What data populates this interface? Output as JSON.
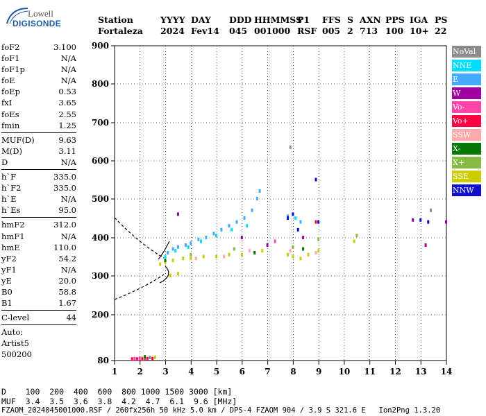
{
  "logo": {
    "top": "Lowell",
    "main": "DIGISONDE"
  },
  "header": {
    "labels": [
      "Station",
      "YYYY",
      "DAY",
      "DDD",
      "HHMMSS",
      "P1",
      "FFS",
      "S",
      "AXN",
      "PPS",
      "IGA",
      "PS"
    ],
    "values": [
      "Fortaleza",
      "2024",
      "Fev14",
      "045",
      "001000",
      "RSF",
      "005",
      "2",
      "713",
      "100",
      "10+",
      "22"
    ]
  },
  "params": {
    "group1": [
      {
        "k": "foF2",
        "v": "3.100"
      },
      {
        "k": "foF1",
        "v": "N/A"
      },
      {
        "k": "foF1p",
        "v": "N/A"
      },
      {
        "k": "foE",
        "v": "N/A"
      },
      {
        "k": "foEp",
        "v": "0.53"
      },
      {
        "k": "fxI",
        "v": "3.65"
      },
      {
        "k": "foEs",
        "v": "2.55"
      },
      {
        "k": "fmin",
        "v": "1.25"
      }
    ],
    "group2": [
      {
        "k": "MUF(D)",
        "v": "9.63"
      },
      {
        "k": "M(D)",
        "v": "3.11"
      },
      {
        "k": "D",
        "v": "N/A"
      }
    ],
    "group3": [
      {
        "k": "h`F",
        "v": "335.0"
      },
      {
        "k": "h`F2",
        "v": "335.0"
      },
      {
        "k": "h`E",
        "v": "N/A"
      },
      {
        "k": "h`Es",
        "v": "95.0"
      }
    ],
    "group4": [
      {
        "k": "hmF2",
        "v": "312.0"
      },
      {
        "k": "hmF1",
        "v": "N/A"
      },
      {
        "k": "hmE",
        "v": "110.0"
      },
      {
        "k": "yF2",
        "v": "54.2"
      },
      {
        "k": "yF1",
        "v": "N/A"
      },
      {
        "k": "yE",
        "v": "20.0"
      },
      {
        "k": "B0",
        "v": "58.8"
      },
      {
        "k": "B1",
        "v": "1.67"
      }
    ],
    "group5": [
      {
        "k": "C-level",
        "v": "44"
      }
    ],
    "auto_label": "Auto:",
    "auto_name": "Artist5",
    "auto_ver": "500200"
  },
  "legend": [
    {
      "label": "NoVal",
      "color": "#8c8c8c"
    },
    {
      "label": "NNE",
      "color": "#00ddff"
    },
    {
      "label": "E",
      "color": "#44aaff"
    },
    {
      "label": "W",
      "color": "#a000a0"
    },
    {
      "label": "Vo-",
      "color": "#ff44aa"
    },
    {
      "label": "Vo+",
      "color": "#ff0044"
    },
    {
      "label": "SSW",
      "color": "#ffaaaa"
    },
    {
      "label": "X-",
      "color": "#007700"
    },
    {
      "label": "X+",
      "color": "#88bb44"
    },
    {
      "label": "SSE",
      "color": "#cccc00"
    },
    {
      "label": "NNW",
      "color": "#1010cc"
    }
  ],
  "chart_data": {
    "type": "scatter",
    "x_ticks": [
      1,
      2,
      3,
      4,
      5,
      6,
      7,
      8,
      9,
      10,
      11,
      12,
      13,
      14
    ],
    "y_ticks": [
      80,
      200,
      300,
      400,
      500,
      600,
      700,
      800,
      900
    ],
    "xlim": [
      1,
      14
    ],
    "ylim_note": "nonlinear height axis (80 at bottom, 900 at top)",
    "series": [
      {
        "name": "E",
        "color": "#44aaff",
        "points": [
          [
            3.1,
            360
          ],
          [
            3.3,
            370
          ],
          [
            3.5,
            375
          ],
          [
            3.8,
            380
          ],
          [
            4.0,
            385
          ],
          [
            4.3,
            395
          ],
          [
            4.6,
            400
          ],
          [
            4.9,
            410
          ],
          [
            5.2,
            420
          ],
          [
            5.5,
            430
          ],
          [
            5.8,
            440
          ],
          [
            6.1,
            450
          ],
          [
            6.4,
            470
          ],
          [
            6.6,
            500
          ],
          [
            6.7,
            520
          ],
          [
            7.8,
            455
          ],
          [
            8.0,
            460
          ],
          [
            8.3,
            440
          ]
        ]
      },
      {
        "name": "NNE",
        "color": "#00ddff",
        "points": [
          [
            3.0,
            350
          ],
          [
            3.4,
            365
          ],
          [
            3.9,
            375
          ],
          [
            4.4,
            390
          ],
          [
            5.0,
            405
          ],
          [
            5.6,
            420
          ],
          [
            6.2,
            430
          ],
          [
            8.1,
            450
          ]
        ]
      },
      {
        "name": "SSE",
        "color": "#cccc00",
        "points": [
          [
            2.8,
            330
          ],
          [
            3.0,
            335
          ],
          [
            3.3,
            340
          ],
          [
            3.7,
            345
          ],
          [
            4.0,
            345
          ],
          [
            4.5,
            350
          ],
          [
            5.0,
            350
          ],
          [
            5.5,
            355
          ],
          [
            6.0,
            355
          ],
          [
            6.5,
            360
          ],
          [
            6.8,
            365
          ],
          [
            7.8,
            355
          ],
          [
            8.0,
            350
          ],
          [
            8.3,
            345
          ],
          [
            8.6,
            355
          ],
          [
            9.0,
            365
          ],
          [
            3.2,
            300
          ],
          [
            3.5,
            305
          ],
          [
            10.4,
            390
          ],
          [
            2.1,
            85
          ],
          [
            2.6,
            88
          ]
        ]
      },
      {
        "name": "SSW",
        "color": "#ffaaaa",
        "points": [
          [
            4.2,
            345
          ],
          [
            5.3,
            350
          ],
          [
            6.3,
            365
          ],
          [
            7.9,
            365
          ],
          [
            8.9,
            360
          ]
        ]
      },
      {
        "name": "NNW",
        "color": "#1010cc",
        "points": [
          [
            7.8,
            450
          ],
          [
            8.0,
            460
          ],
          [
            8.2,
            420
          ],
          [
            8.9,
            550
          ],
          [
            9.0,
            440
          ],
          [
            13.0,
            445
          ],
          [
            13.3,
            440
          ]
        ]
      },
      {
        "name": "W",
        "color": "#a000a0",
        "points": [
          [
            3.5,
            460
          ],
          [
            6.0,
            400
          ],
          [
            7.0,
            380
          ],
          [
            8.4,
            400
          ],
          [
            12.7,
            445
          ],
          [
            13.2,
            380
          ],
          [
            14.0,
            440
          ]
        ]
      },
      {
        "name": "Vo+",
        "color": "#ff0044",
        "points": [
          [
            1.7,
            83
          ],
          [
            1.9,
            83
          ],
          [
            2.1,
            83
          ],
          [
            2.3,
            84
          ],
          [
            2.5,
            84
          ],
          [
            8.9,
            440
          ]
        ]
      },
      {
        "name": "Vo-",
        "color": "#ff44aa",
        "points": [
          [
            1.8,
            84
          ],
          [
            2.0,
            85
          ],
          [
            2.2,
            85
          ],
          [
            7.3,
            390
          ]
        ]
      },
      {
        "name": "X-",
        "color": "#007700",
        "points": [
          [
            3.0,
            340
          ],
          [
            6.5,
            360
          ],
          [
            8.4,
            370
          ],
          [
            2.2,
            89
          ]
        ]
      },
      {
        "name": "X+",
        "color": "#88bb44",
        "points": [
          [
            4.0,
            355
          ],
          [
            5.7,
            370
          ],
          [
            8.0,
            375
          ],
          [
            9.0,
            395
          ],
          [
            10.5,
            405
          ]
        ]
      },
      {
        "name": "NoVal",
        "color": "#8c8c8c",
        "points": [
          [
            2.4,
            87
          ],
          [
            7.9,
            635
          ],
          [
            13.4,
            470
          ]
        ]
      }
    ]
  },
  "footer": {
    "row1_label": "D",
    "row1_values": [
      "100",
      "200",
      "400",
      "600",
      "800",
      "1000",
      "1500",
      "3000"
    ],
    "row1_unit": "[km]",
    "row2_label": "MUF",
    "row2_values": [
      "3.4",
      "3.5",
      "3.6",
      "3.8",
      "4.2",
      "4.7",
      "6.1",
      "9.6"
    ],
    "row2_unit": "[MHz]",
    "fileline": "FZAOM_2024045001000.RSF / 260fx256h 50 kHz 5.0 km / DPS-4 FZAOM 904 / 3.9 S 321.6 E   Ion2Png 1.3.20"
  }
}
